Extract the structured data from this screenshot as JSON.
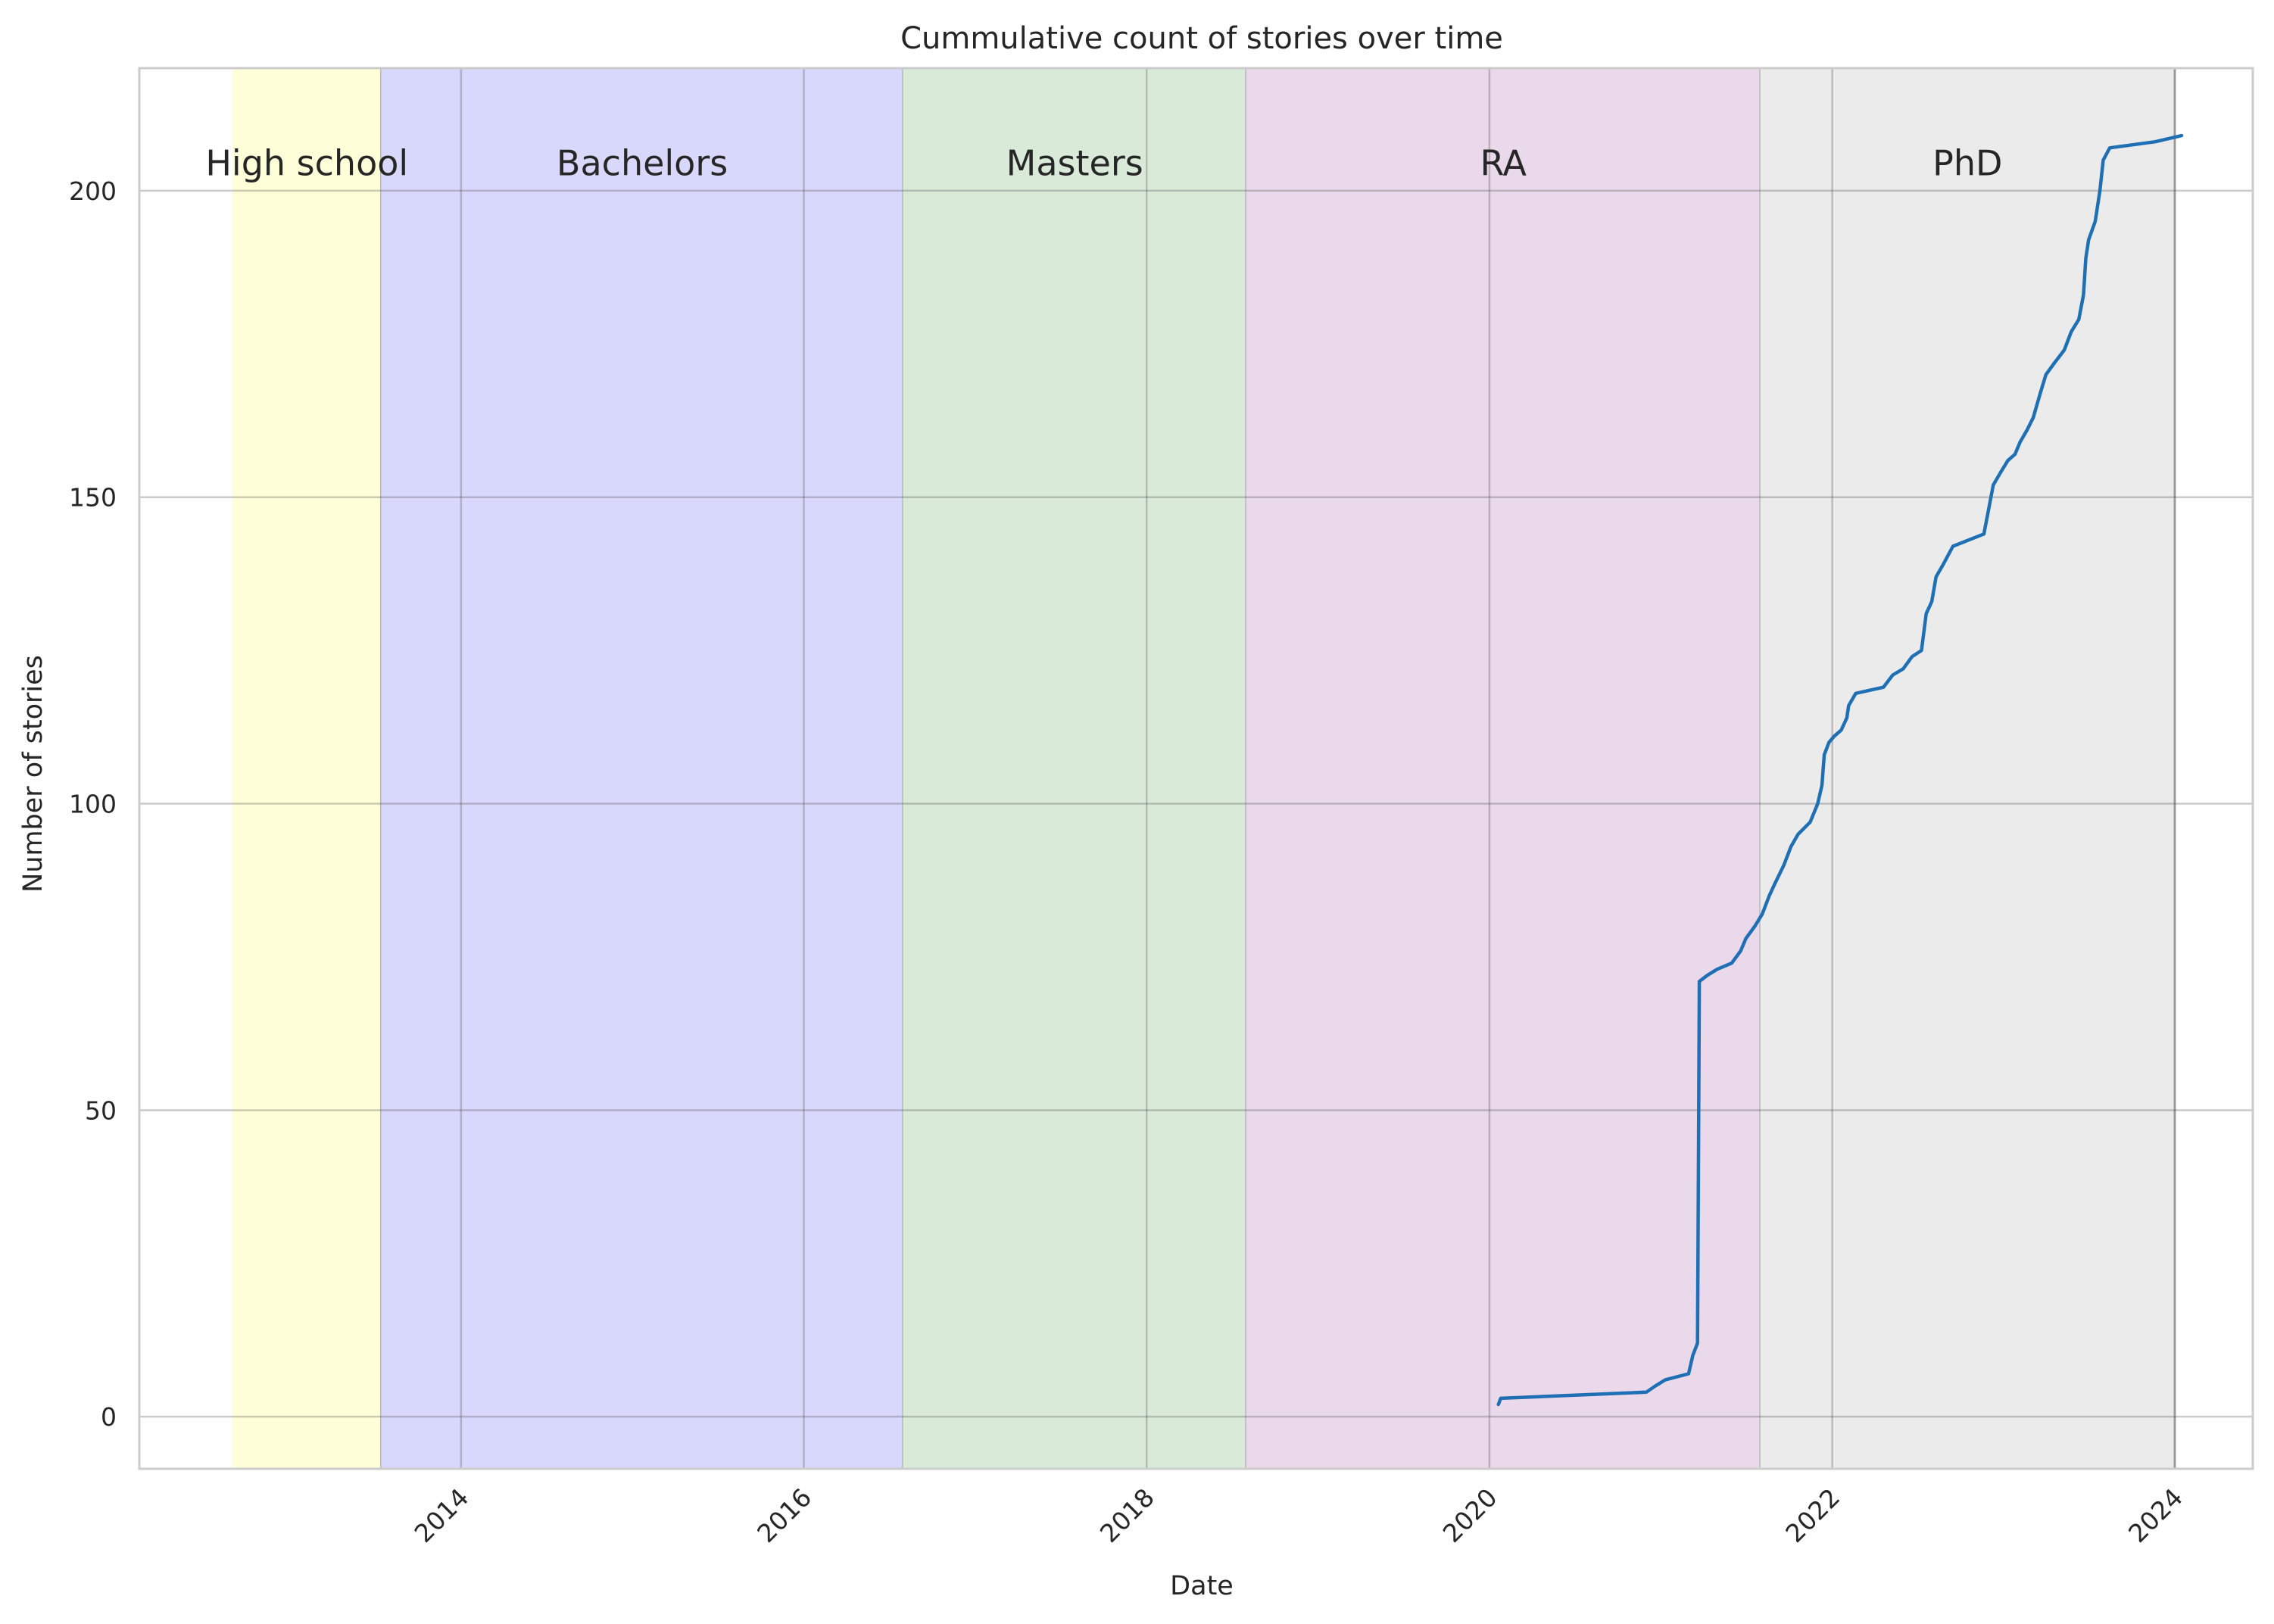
{
  "chart_data": {
    "type": "line",
    "title": "Cummulative count of stories over time",
    "xlabel": "Date",
    "ylabel": "Number of stories",
    "x_ticks": [
      "2014",
      "2016",
      "2018",
      "2020",
      "2022",
      "2024"
    ],
    "x_tick_values": [
      2014,
      2016,
      2018,
      2020,
      2022,
      2024
    ],
    "y_ticks": [
      "0",
      "50",
      "100",
      "150",
      "200"
    ],
    "y_tick_values": [
      0,
      50,
      100,
      150,
      200
    ],
    "xlim": [
      "2012-02-15",
      "2024-06-15"
    ],
    "ylim": [
      -8.5,
      220
    ],
    "grid": true,
    "phases": [
      {
        "label": "High school",
        "start": "2012-09-01",
        "end": "2013-07-15",
        "color": "#ffffd9"
      },
      {
        "label": "Bachelors",
        "start": "2013-07-15",
        "end": "2016-07-31",
        "color": "#d8d8fd"
      },
      {
        "label": "Masters",
        "start": "2016-07-31",
        "end": "2018-08-01",
        "color": "#d9ead9"
      },
      {
        "label": "RA",
        "start": "2018-08-01",
        "end": "2021-08-01",
        "color": "#ead9ea"
      },
      {
        "label": "PhD",
        "start": "2021-08-01",
        "end": "2023-12-31",
        "color": "#ebebeb"
      }
    ],
    "series": [
      {
        "color": "#1f6fb4",
        "points": [
          [
            "2020-01-20",
            2
          ],
          [
            "2020-01-25",
            3
          ],
          [
            "2020-12-01",
            4
          ],
          [
            "2020-12-20",
            5
          ],
          [
            "2021-01-10",
            6
          ],
          [
            "2021-03-01",
            7
          ],
          [
            "2021-03-10",
            10
          ],
          [
            "2021-03-20",
            12
          ],
          [
            "2021-03-22",
            40
          ],
          [
            "2021-03-24",
            71
          ],
          [
            "2021-04-10",
            72
          ],
          [
            "2021-05-01",
            73
          ],
          [
            "2021-06-01",
            74
          ],
          [
            "2021-06-20",
            76
          ],
          [
            "2021-07-01",
            78
          ],
          [
            "2021-07-20",
            80
          ],
          [
            "2021-08-05",
            82
          ],
          [
            "2021-08-20",
            85
          ],
          [
            "2021-09-01",
            87
          ],
          [
            "2021-09-20",
            90
          ],
          [
            "2021-10-05",
            93
          ],
          [
            "2021-10-20",
            95
          ],
          [
            "2021-11-15",
            97
          ],
          [
            "2021-12-01",
            100
          ],
          [
            "2021-12-10",
            103
          ],
          [
            "2021-12-15",
            108
          ],
          [
            "2021-12-25",
            110
          ],
          [
            "2022-01-05",
            111
          ],
          [
            "2022-01-20",
            112
          ],
          [
            "2022-02-01",
            114
          ],
          [
            "2022-02-05",
            116
          ],
          [
            "2022-02-20",
            118
          ],
          [
            "2022-04-20",
            119
          ],
          [
            "2022-05-10",
            121
          ],
          [
            "2022-06-01",
            122
          ],
          [
            "2022-06-20",
            124
          ],
          [
            "2022-07-10",
            125
          ],
          [
            "2022-07-20",
            131
          ],
          [
            "2022-08-01",
            133
          ],
          [
            "2022-08-10",
            137
          ],
          [
            "2022-08-25",
            139
          ],
          [
            "2022-09-15",
            142
          ],
          [
            "2022-11-20",
            144
          ],
          [
            "2022-12-10",
            152
          ],
          [
            "2022-12-25",
            154
          ],
          [
            "2023-01-10",
            156
          ],
          [
            "2023-01-25",
            157
          ],
          [
            "2023-02-05",
            159
          ],
          [
            "2023-02-20",
            161
          ],
          [
            "2023-03-05",
            163
          ],
          [
            "2023-03-20",
            167
          ],
          [
            "2023-04-01",
            170
          ],
          [
            "2023-04-20",
            172
          ],
          [
            "2023-05-10",
            174
          ],
          [
            "2023-05-25",
            177
          ],
          [
            "2023-06-10",
            179
          ],
          [
            "2023-06-20",
            183
          ],
          [
            "2023-06-25",
            189
          ],
          [
            "2023-07-01",
            192
          ],
          [
            "2023-07-15",
            195
          ],
          [
            "2023-07-25",
            200
          ],
          [
            "2023-08-01",
            205
          ],
          [
            "2023-08-15",
            207
          ],
          [
            "2023-11-20",
            208
          ],
          [
            "2024-01-15",
            209
          ]
        ]
      }
    ]
  }
}
